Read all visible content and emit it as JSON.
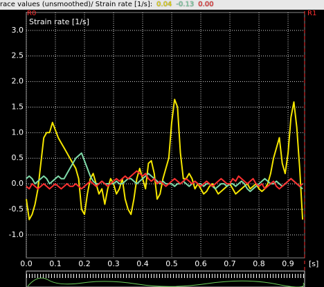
{
  "chart_data": {
    "type": "line",
    "title": "race values (unsmoothed)/ Strain rate [1/s]:",
    "y_label": "Strain rate [1/s]",
    "x_unit": "[s]",
    "markers": [
      "R0",
      "R1"
    ],
    "xlim": [
      0,
      0.957
    ],
    "ylim": [
      -1.45,
      3.35
    ],
    "grid": true,
    "xticks": [
      {
        "value": 0,
        "label": "0.0"
      },
      0.1,
      0.2,
      0.3,
      0.4,
      0.5,
      0.6,
      0.7,
      0.8,
      0.9
    ],
    "yticks": [
      {
        "value": -1,
        "label": "-1.0"
      },
      -0.5,
      {
        "value": 0,
        "label": "0.0"
      },
      0.5,
      {
        "value": 1,
        "label": "1.0"
      },
      1.5,
      {
        "value": 2,
        "label": "2.0"
      },
      2.5,
      {
        "value": 3,
        "label": "3.0"
      }
    ],
    "x": [
      0,
      0.01,
      0.02,
      0.03,
      0.04,
      0.05,
      0.06,
      0.07,
      0.08,
      0.09,
      0.1,
      0.11,
      0.12,
      0.13,
      0.14,
      0.15,
      0.16,
      0.17,
      0.18,
      0.19,
      0.2,
      0.21,
      0.22,
      0.23,
      0.24,
      0.25,
      0.26,
      0.27,
      0.28,
      0.29,
      0.3,
      0.31,
      0.32,
      0.33,
      0.34,
      0.35,
      0.36,
      0.37,
      0.38,
      0.39,
      0.4,
      0.41,
      0.42,
      0.43,
      0.44,
      0.45,
      0.46,
      0.47,
      0.48,
      0.49,
      0.5,
      0.51,
      0.52,
      0.53,
      0.54,
      0.55,
      0.56,
      0.57,
      0.58,
      0.59,
      0.6,
      0.61,
      0.62,
      0.63,
      0.64,
      0.65,
      0.66,
      0.67,
      0.68,
      0.69,
      0.7,
      0.71,
      0.72,
      0.73,
      0.74,
      0.75,
      0.76,
      0.77,
      0.78,
      0.79,
      0.8,
      0.81,
      0.82,
      0.83,
      0.84,
      0.85,
      0.86,
      0.87,
      0.88,
      0.89,
      0.9,
      0.91,
      0.92,
      0.93,
      0.94,
      0.95
    ],
    "series": [
      {
        "color": "#f5e600",
        "readout": "0.04",
        "values": [
          -0.3,
          -0.7,
          -0.6,
          -0.4,
          -0.1,
          0.4,
          0.9,
          1.0,
          1.0,
          1.2,
          1.05,
          0.9,
          0.8,
          0.7,
          0.6,
          0.5,
          0.4,
          0.3,
          0.1,
          -0.5,
          -0.6,
          -0.2,
          0.1,
          0.2,
          0.0,
          -0.2,
          -0.1,
          -0.4,
          -0.1,
          0.1,
          0.0,
          -0.2,
          -0.1,
          0.1,
          -0.3,
          -0.5,
          -0.6,
          -0.3,
          0.1,
          0.3,
          0.1,
          -0.1,
          0.4,
          0.45,
          0.2,
          -0.3,
          -0.2,
          0.1,
          0.3,
          0.5,
          1.2,
          1.65,
          1.5,
          0.6,
          0.1,
          0.1,
          0.2,
          0.1,
          -0.1,
          0.0,
          -0.1,
          -0.2,
          -0.15,
          -0.05,
          0.0,
          -0.1,
          -0.2,
          -0.15,
          -0.1,
          -0.05,
          0.0,
          -0.1,
          -0.2,
          -0.15,
          -0.1,
          -0.05,
          0.0,
          -0.1,
          -0.05,
          0.0,
          -0.1,
          -0.15,
          -0.1,
          0.0,
          0.2,
          0.5,
          0.7,
          0.9,
          0.4,
          0.2,
          0.6,
          1.3,
          1.6,
          1.1,
          0.3,
          -0.7
        ]
      },
      {
        "color": "#7fdcaa",
        "readout": "-0.13",
        "values": [
          0.1,
          0.15,
          0.1,
          0.0,
          0.05,
          0.1,
          0.15,
          0.1,
          0.0,
          0.05,
          0.1,
          0.15,
          0.1,
          0.1,
          0.2,
          0.3,
          0.4,
          0.5,
          0.55,
          0.6,
          0.45,
          0.3,
          0.15,
          0.05,
          0.0,
          0.0,
          0.05,
          0.0,
          0.0,
          0.0,
          0.0,
          0.05,
          0.0,
          0.0,
          0.05,
          0.1,
          0.1,
          0.05,
          0.0,
          0.05,
          0.1,
          0.15,
          0.2,
          0.15,
          0.1,
          0.05,
          0.0,
          0.05,
          0.0,
          0.0,
          0.0,
          -0.05,
          0.0,
          0.0,
          0.05,
          0.0,
          -0.05,
          0.0,
          0.05,
          0.0,
          0.0,
          -0.05,
          0.0,
          0.0,
          -0.05,
          -0.1,
          -0.05,
          0.0,
          0.0,
          -0.05,
          0.0,
          0.0,
          -0.05,
          0.0,
          0.05,
          0.0,
          -0.1,
          -0.15,
          -0.1,
          -0.05,
          0.0,
          0.05,
          0.1,
          0.05,
          0.0,
          0.0,
          0.05,
          0.0,
          -0.05,
          0.0,
          0.05,
          0.1,
          0.05,
          0.0,
          -0.05,
          -0.1
        ]
      },
      {
        "color": "#ff3030",
        "readout": "0.00",
        "values": [
          -0.05,
          -0.1,
          0.0,
          -0.05,
          -0.1,
          -0.05,
          0.0,
          -0.05,
          -0.1,
          -0.05,
          0.0,
          -0.05,
          -0.1,
          -0.05,
          0.0,
          -0.05,
          -0.05,
          0.0,
          -0.05,
          -0.1,
          -0.05,
          0.0,
          0.05,
          0.0,
          -0.05,
          0.0,
          0.05,
          0.0,
          -0.05,
          0.0,
          0.05,
          0.1,
          0.05,
          0.1,
          0.15,
          0.1,
          0.15,
          0.2,
          0.25,
          0.2,
          0.15,
          0.2,
          0.1,
          0.05,
          0.1,
          0.0,
          0.05,
          0.0,
          -0.05,
          0.0,
          0.05,
          0.1,
          0.05,
          0.0,
          0.05,
          0.1,
          0.05,
          0.0,
          0.05,
          0.0,
          -0.05,
          0.0,
          0.05,
          0.0,
          -0.05,
          0.0,
          0.05,
          0.1,
          0.05,
          0.0,
          0.0,
          0.1,
          0.05,
          0.15,
          0.1,
          0.05,
          0.0,
          0.05,
          0.1,
          0.0,
          -0.05,
          0.0,
          -0.1,
          -0.05,
          0.0,
          0.05,
          -0.05,
          -0.1,
          -0.05,
          0.0,
          0.05,
          0.1,
          0.05,
          0.0,
          -0.05,
          0.0
        ]
      }
    ]
  }
}
